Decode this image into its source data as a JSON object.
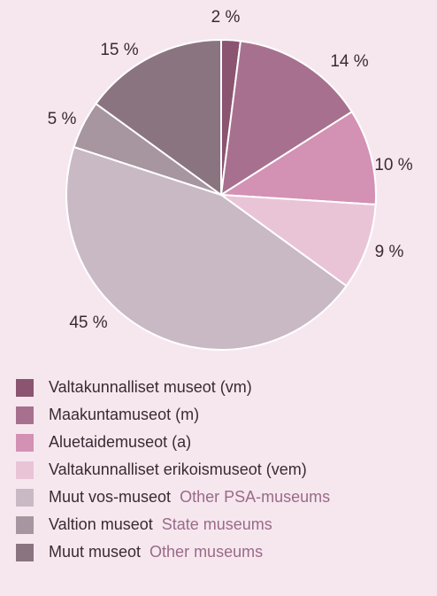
{
  "chart_data": {
    "type": "pie",
    "categories": [
      "Valtakunnalliset museot (vm)",
      "Maakuntamuseot (m)",
      "Aluetaidemuseot (a)",
      "Valtakunnalliset erikoismuseot (vem)",
      "Muut vos-museot",
      "Valtion museot",
      "Muut museot"
    ],
    "translations": [
      null,
      null,
      null,
      null,
      "Other PSA-museums",
      "State museums",
      "Other museums"
    ],
    "values": [
      2,
      14,
      10,
      9,
      45,
      5,
      15
    ],
    "value_labels": [
      "2 %",
      "14 %",
      "10 %",
      "9 %",
      "45 %",
      "5 %",
      "15 %"
    ],
    "colors": [
      "#8b5470",
      "#a8708f",
      "#d391b4",
      "#e9c4d7",
      "#c9b9c4",
      "#a7959f",
      "#8a7480"
    ]
  }
}
